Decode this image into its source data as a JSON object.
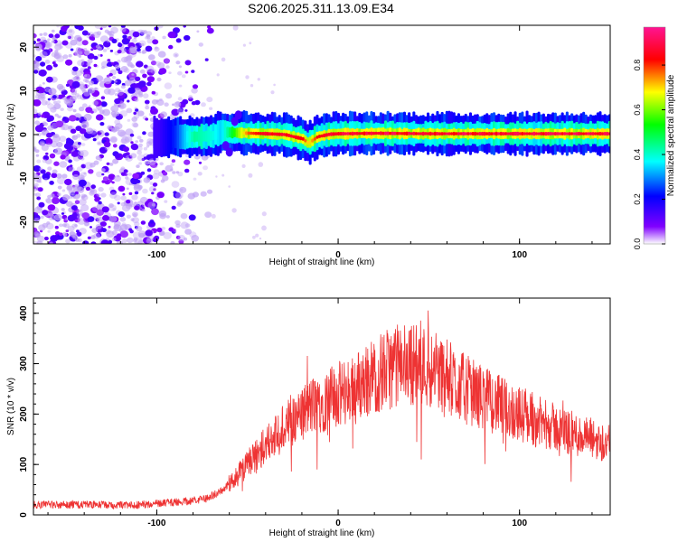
{
  "figure": {
    "title": "S206.2025.311.13.09.E34"
  },
  "chart_data": [
    {
      "type": "heatmap",
      "xlabel": "Height of straight line (km)",
      "ylabel": "Frequency (Hz)",
      "xlim": [
        -168,
        150
      ],
      "ylim": [
        -25,
        25
      ],
      "x_ticks": [
        -100,
        0,
        100
      ],
      "x_tick_labels": [
        "-100",
        "0",
        "100"
      ],
      "y_ticks": [
        -20,
        -10,
        0,
        10,
        20
      ],
      "y_tick_labels": [
        "-20",
        "-10",
        "0",
        "10",
        "20"
      ],
      "colorbar": {
        "label": "Normalized spectral amplitude",
        "range": [
          0,
          0.97
        ],
        "ticks": [
          0,
          0.2,
          0.4,
          0.6,
          0.8
        ],
        "tick_labels": [
          "0.0",
          "0.2",
          "0.4",
          "0.6",
          "0.8"
        ],
        "colors": [
          "#ffffff",
          "#8000ff",
          "#0000ff",
          "#00ffff",
          "#00ff00",
          "#ffff00",
          "#ff0000",
          "#ff1493"
        ]
      },
      "ridge": {
        "description_values": "frequency offset of dominant spectral line vs height",
        "x": [
          -100,
          -90,
          -80,
          -70,
          -65,
          -60,
          -50,
          -40,
          -30,
          -20,
          -17,
          -12,
          -5,
          0,
          20,
          50,
          100,
          150
        ],
        "y": [
          -0.8,
          -0.5,
          -0.5,
          -0.3,
          0.6,
          0.5,
          0.3,
          0.2,
          0.0,
          -1.0,
          -2.0,
          -0.5,
          0.1,
          0.2,
          0.3,
          0.2,
          0.2,
          0.2
        ],
        "amplitude": [
          0.15,
          0.25,
          0.45,
          0.4,
          0.35,
          0.5,
          0.8,
          0.9,
          0.9,
          0.85,
          0.7,
          0.85,
          0.9,
          0.95,
          0.95,
          0.95,
          0.95,
          0.95
        ]
      },
      "noise_region_x": [
        -168,
        -70
      ],
      "grid": false,
      "legend": "colorbar-right"
    },
    {
      "type": "line",
      "xlabel": "Height of straight line (km)",
      "ylabel": "SNR (10 * v/v)",
      "xlim": [
        -168,
        150
      ],
      "ylim": [
        0,
        430
      ],
      "x_ticks": [
        -100,
        0,
        100
      ],
      "x_tick_labels": [
        "-100",
        "0",
        "100"
      ],
      "y_ticks": [
        0,
        100,
        200,
        300,
        400
      ],
      "y_tick_labels": [
        "0",
        "100",
        "200",
        "300",
        "400"
      ],
      "color": "#ee3333",
      "envelope": {
        "x": [
          -168,
          -140,
          -110,
          -90,
          -75,
          -65,
          -55,
          -45,
          -35,
          -25,
          -15,
          -5,
          5,
          15,
          25,
          35,
          45,
          55,
          70,
          90,
          110,
          130,
          150
        ],
        "y": [
          20,
          20,
          20,
          25,
          30,
          45,
          80,
          120,
          155,
          190,
          215,
          230,
          245,
          265,
          285,
          300,
          300,
          285,
          250,
          215,
          185,
          160,
          140
        ]
      },
      "grid": false
    }
  ]
}
